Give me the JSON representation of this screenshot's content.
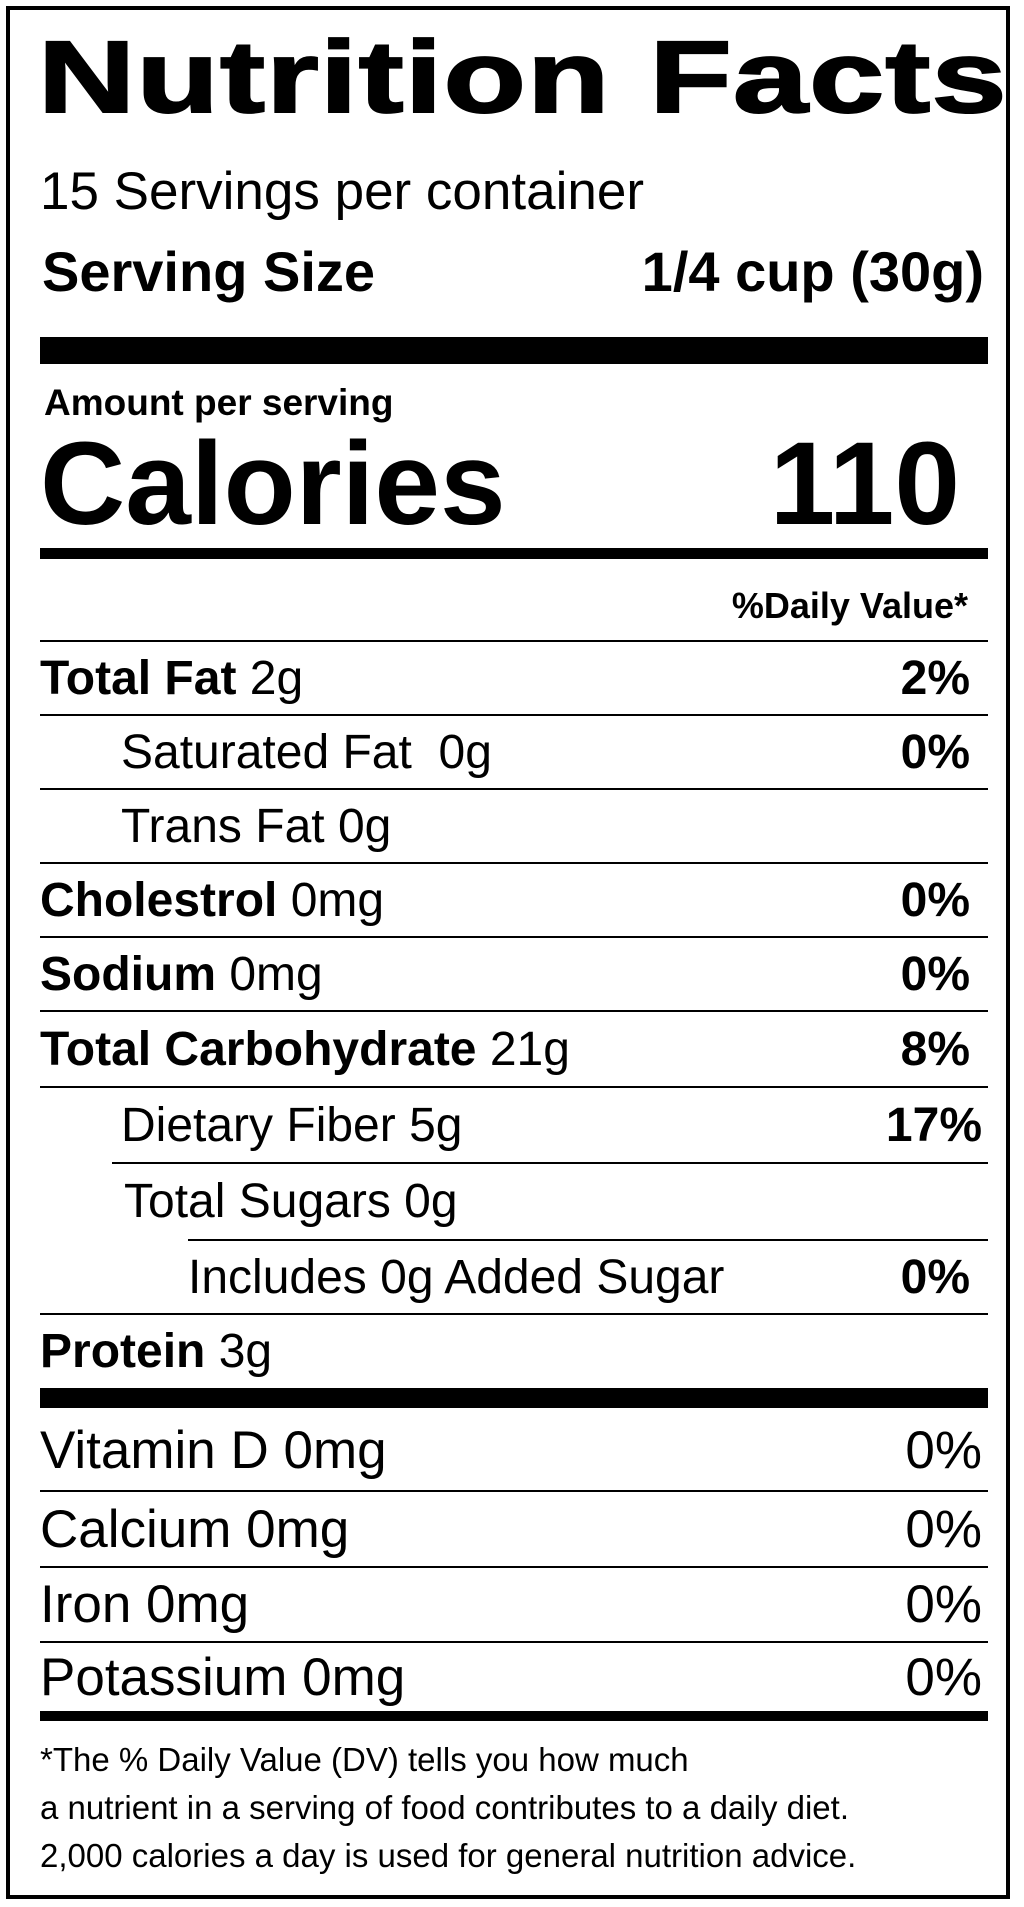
{
  "title": "Nutrition Facts",
  "servings_per_container": "15 Servings per container",
  "serving_size": {
    "label": "Serving Size",
    "value": "1/4 cup (30g)"
  },
  "amount_per_serving": "Amount per serving",
  "calories": {
    "label": "Calories",
    "value": "110"
  },
  "daily_value_header": "%Daily Value*",
  "nutrients": [
    {
      "name": "Total Fat",
      "amount": "2g",
      "dv": "2%"
    },
    {
      "name": "Saturated Fat",
      "amount": " 0g",
      "dv": "0%"
    },
    {
      "name": "Trans Fat",
      "amount": "0g",
      "dv": ""
    },
    {
      "name": "Cholestrol",
      "amount": "0mg",
      "dv": "0%"
    },
    {
      "name": "Sodium",
      "amount": "0mg",
      "dv": "0%"
    },
    {
      "name": "Total Carbohydrate",
      "amount": "21g",
      "dv": "8%"
    },
    {
      "name": "Dietary Fiber",
      "amount": "5g",
      "dv": "17%"
    },
    {
      "name": "Total Sugars",
      "amount": "0g",
      "dv": ""
    },
    {
      "name": "Includes 0g Added Sugar",
      "amount": "",
      "dv": "0%"
    },
    {
      "name": "Protein",
      "amount": "3g",
      "dv": ""
    }
  ],
  "vitamins": [
    {
      "name": "Vitamin D 0mg",
      "dv": "0%"
    },
    {
      "name": "Calcium 0mg",
      "dv": "0%"
    },
    {
      "name": "Iron 0mg",
      "dv": "0%"
    },
    {
      "name": "Potassium 0mg",
      "dv": "0%"
    }
  ],
  "footnote": [
    "*The % Daily Value (DV) tells you how much",
    "a nutrient in a serving of food contributes to a daily diet.",
    "2,000 calories a day is used for general nutrition advice."
  ]
}
